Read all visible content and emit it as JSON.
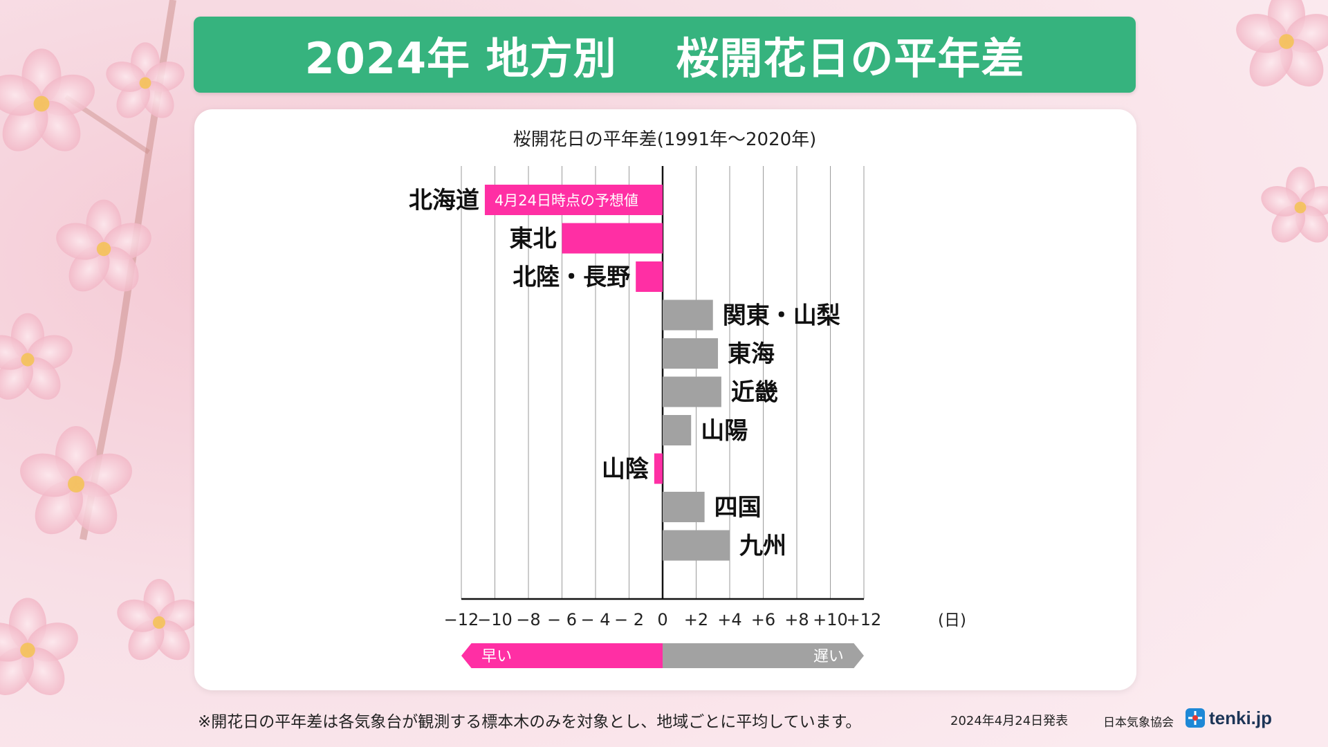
{
  "header": {
    "title": "2024年 地方別　 桜開花日の平年差"
  },
  "chart_data": {
    "type": "bar",
    "orientation": "horizontal",
    "title": "桜開花日の平年差(1991年～2020年)",
    "categories": [
      "北海道",
      "東北",
      "北陸・長野",
      "関東・山梨",
      "東海",
      "近畿",
      "山陽",
      "山陰",
      "四国",
      "九州"
    ],
    "values": [
      -10.6,
      -6,
      -1.6,
      3,
      3.3,
      3.5,
      1.7,
      -0.5,
      2.5,
      4
    ],
    "xlim": [
      -12,
      12
    ],
    "xticks": [
      "−12",
      "−10",
      "−8",
      "− 6",
      "− 4",
      "− 2",
      "0",
      "+2",
      "+4",
      "+6",
      "+8",
      "+10",
      "+12"
    ],
    "xunit": "(日)",
    "bar_annotation": {
      "category": "北海道",
      "text": "4月24日時点の予想値"
    },
    "direction_early": "早い",
    "direction_late": "遅い",
    "colors": {
      "early": "#ff2fa4",
      "late": "#a2a2a2",
      "grid": "#9a9a9a"
    }
  },
  "footer": {
    "note": "※開花日の平年差は各気象台が観測する標本木のみを対象とし、地域ごとに平均しています。",
    "published": "2024年4月24日発表",
    "org": "日本気象協会",
    "logo_text": "tenki.jp"
  }
}
